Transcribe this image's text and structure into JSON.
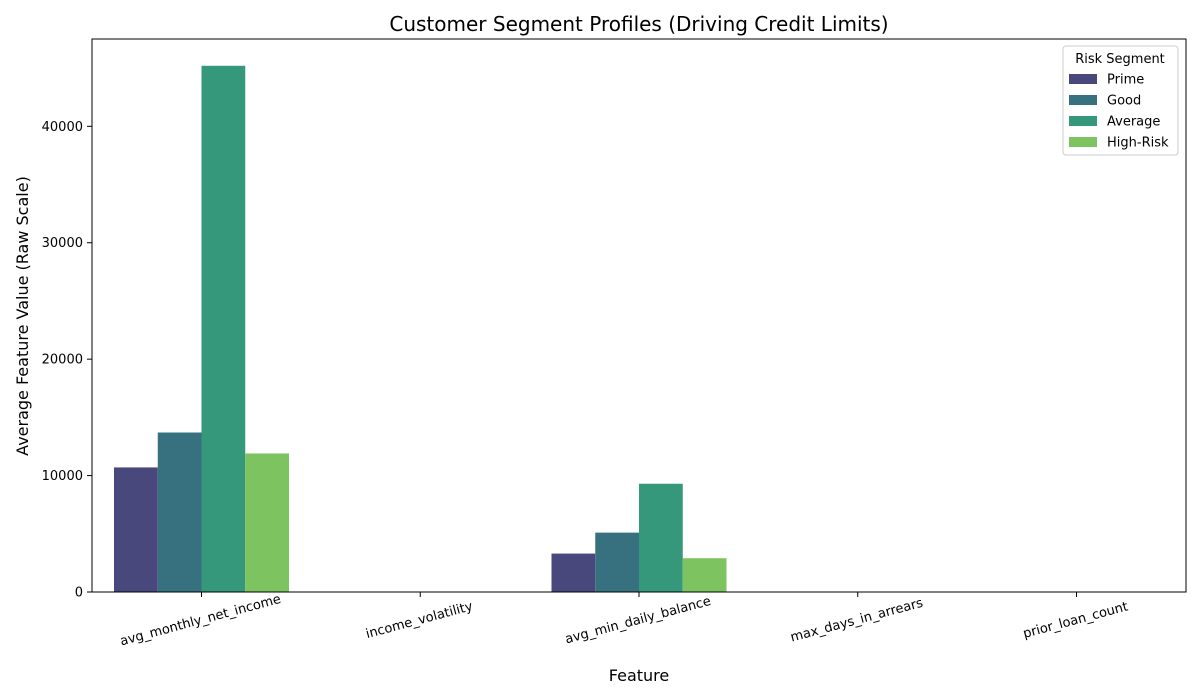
{
  "chart_data": {
    "type": "bar",
    "title": "Customer Segment Profiles (Driving Credit Limits)",
    "xlabel": "Feature",
    "ylabel": "Average Feature Value (Raw Scale)",
    "categories": [
      "avg_monthly_net_income",
      "income_volatility",
      "avg_min_daily_balance",
      "max_days_in_arrears",
      "prior_loan_count"
    ],
    "series": [
      {
        "name": "Prime",
        "color": "#48487c",
        "values": [
          10700,
          0.3,
          3300,
          1,
          1
        ]
      },
      {
        "name": "Good",
        "color": "#37707f",
        "values": [
          13700,
          0.2,
          5100,
          1,
          1
        ]
      },
      {
        "name": "Average",
        "color": "#35987b",
        "values": [
          45200,
          0.3,
          9300,
          2,
          1
        ]
      },
      {
        "name": "High-Risk",
        "color": "#7dc360",
        "values": [
          11900,
          0.5,
          2900,
          5,
          1
        ]
      }
    ],
    "ylim": [
      0,
      47500
    ],
    "yticks": [
      0,
      10000,
      20000,
      30000,
      40000
    ],
    "legend": {
      "title": "Risk Segment",
      "position": "top-right"
    },
    "grid": false
  }
}
